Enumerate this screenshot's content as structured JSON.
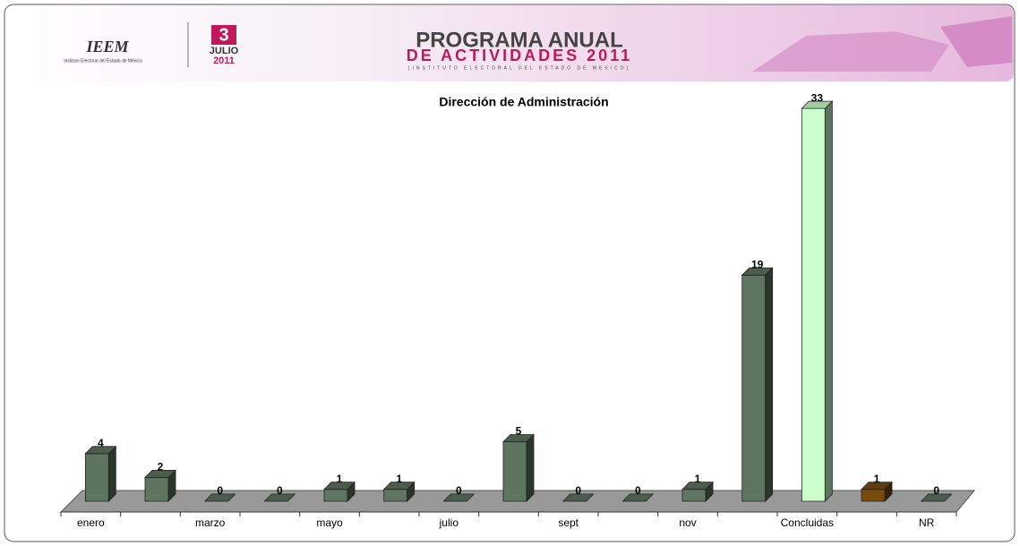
{
  "header": {
    "logo_text": "IEEM",
    "logo_subtitle": "Instituto Electoral del Estado de México",
    "date_day": "3",
    "date_month": "JULIO",
    "date_year": "2011",
    "title_line1": "PROGRAMA ANUAL",
    "title_line2": "DE ACTIVIDADES 2011",
    "title_line3": "[INSTITUTO ELECTORAL DEL ESTADO DE MEXICO]"
  },
  "chart_data": {
    "type": "bar3d",
    "title": "Dirección de Administración",
    "categories": [
      "enero",
      null,
      "marzo",
      null,
      "mayo",
      null,
      "julio",
      null,
      "sept",
      null,
      "nov",
      null,
      "Concluidas",
      null,
      "NR"
    ],
    "values": [
      4,
      2,
      0,
      0,
      1,
      1,
      0,
      5,
      0,
      0,
      1,
      19,
      33,
      1,
      0
    ],
    "colors": [
      "#5e7560",
      "#5e7560",
      "#5e7560",
      "#5e7560",
      "#5e7560",
      "#5e7560",
      "#5e7560",
      "#5e7560",
      "#5e7560",
      "#5e7560",
      "#5e7560",
      "#5e7560",
      "#ccffcc",
      "#7a4a0c",
      "#5e7560"
    ]
  }
}
